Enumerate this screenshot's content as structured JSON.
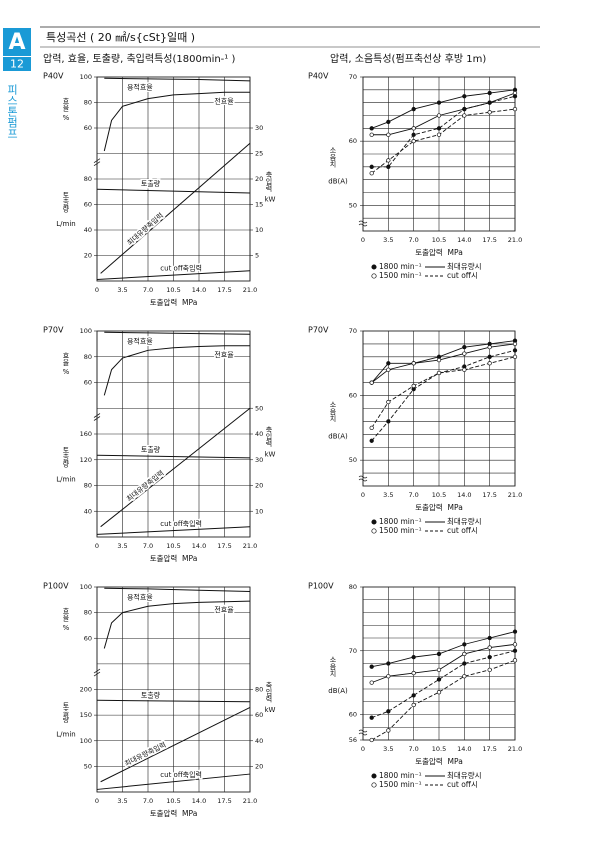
{
  "header": {
    "badge": "A",
    "page": "12",
    "side": "피스톤펌프",
    "title": "특성곡선 ( 20 ㎟/s{cSt}일때 )",
    "left_heading": "압력, 효율, 토출량, 축입력특성(1800min-¹ )",
    "right_heading": "압력, 소음특성(펌프축선상 후방 1m)"
  },
  "chart_data": [
    {
      "type": "performance",
      "title": "P40V",
      "xlabel": "토출압력  MPa",
      "xlim": [
        0,
        21
      ],
      "xticks": [
        0,
        3.5,
        {
          "value": 7,
          "label": "7.0"
        },
        10.5,
        {
          "value": 14,
          "label": "14.0"
        },
        17.5,
        {
          "value": 21,
          "label": "21.0"
        }
      ],
      "ylim": [
        0,
        160
      ],
      "yticks": [
        20,
        40,
        60,
        80
      ],
      "ylabel": "토출량",
      "yunit": "L/min",
      "y2lim": [
        0,
        40
      ],
      "y2ticks": [
        5,
        10,
        15,
        20,
        25,
        30
      ],
      "y2label": "축입력",
      "y2unit": "kW",
      "y3lim": [
        -60,
        100
      ],
      "y3ticks": [
        60,
        80,
        100
      ],
      "y3label": "효율",
      "y3unit": "%",
      "series": [
        {
          "name": "용적효율",
          "axis": "y3",
          "x": [
            1,
            7,
            14,
            21
          ],
          "values": [
            99,
            98.5,
            98,
            97
          ]
        },
        {
          "name": "전효율",
          "axis": "y3",
          "x": [
            1,
            2,
            3.5,
            7,
            10.5,
            14,
            17.5,
            21
          ],
          "values": [
            42,
            66,
            77,
            83,
            86,
            87,
            88,
            88
          ]
        },
        {
          "name": "토출량",
          "axis": "y",
          "x": [
            0,
            21
          ],
          "values": [
            72,
            69
          ]
        },
        {
          "name": "최대유량축입력",
          "axis": "y2",
          "x": [
            0.5,
            21
          ],
          "values": [
            1.5,
            27
          ]
        },
        {
          "name": "cut off축입력",
          "axis": "y2",
          "x": [
            0,
            21
          ],
          "values": [
            0.3,
            2
          ]
        }
      ]
    },
    {
      "type": "noise",
      "title": "P40V",
      "xlabel": "토출압력  MPa",
      "xlim": [
        0,
        21
      ],
      "xticks": [
        0,
        3.5,
        {
          "value": 7,
          "label": "7.0"
        },
        10.5,
        {
          "value": 14,
          "label": "14.0"
        },
        17.5,
        {
          "value": 21,
          "label": "21.0"
        }
      ],
      "ylim": [
        46,
        70
      ],
      "yticks": [
        50,
        60,
        70
      ],
      "ylabel": "소음치",
      "yunit": "dB(A)",
      "x": [
        1.2,
        3.5,
        7,
        10.5,
        14,
        17.5,
        21
      ],
      "legend": {
        "speeds": [
          "1800 min⁻¹",
          "1500 min⁻¹"
        ],
        "conditions": [
          "최대유량시",
          "cut off시"
        ]
      },
      "series": [
        {
          "marker": "filled",
          "dash": false,
          "color": "#111",
          "values": [
            62,
            63,
            65,
            66,
            67,
            67.5,
            68
          ]
        },
        {
          "marker": "open",
          "dash": false,
          "color": "#111",
          "values": [
            61,
            61,
            62,
            64,
            65,
            66,
            67.5
          ]
        },
        {
          "marker": "filled",
          "dash": true,
          "color": "#111",
          "values": [
            56,
            56,
            61,
            62,
            65,
            66,
            67
          ]
        },
        {
          "marker": "open",
          "dash": true,
          "color": "#111",
          "values": [
            55,
            57,
            60,
            61,
            64,
            64.5,
            65
          ]
        }
      ]
    },
    {
      "type": "performance",
      "title": "P70V",
      "xlabel": "토출압력  MPa",
      "xlim": [
        0,
        21
      ],
      "xticks": [
        0,
        3.5,
        {
          "value": 7,
          "label": "7.0"
        },
        10.5,
        {
          "value": 14,
          "label": "14.0"
        },
        17.5,
        {
          "value": 21,
          "label": "21.0"
        }
      ],
      "ylim": [
        0,
        320
      ],
      "yticks": [
        40,
        80,
        120,
        160
      ],
      "ylabel": "토출량",
      "yunit": "L/min",
      "y2lim": [
        0,
        80
      ],
      "y2ticks": [
        10,
        20,
        30,
        40,
        50
      ],
      "y2label": "축입력",
      "y2unit": "kW",
      "y3lim": [
        -60,
        100
      ],
      "y3ticks": [
        60,
        80,
        100
      ],
      "y3label": "효율",
      "y3unit": "%",
      "series": [
        {
          "name": "용적효율",
          "axis": "y3",
          "x": [
            1,
            7,
            14,
            21
          ],
          "values": [
            99,
            98.5,
            98,
            97.5
          ]
        },
        {
          "name": "전효율",
          "axis": "y3",
          "x": [
            1,
            2,
            3.5,
            7,
            10.5,
            14,
            17.5,
            21
          ],
          "values": [
            50,
            70,
            79,
            85,
            87,
            88,
            88.5,
            88.5
          ]
        },
        {
          "name": "토출량",
          "axis": "y",
          "x": [
            0,
            21
          ],
          "values": [
            127,
            123
          ]
        },
        {
          "name": "최대유량축입력",
          "axis": "y2",
          "x": [
            0.5,
            21
          ],
          "values": [
            4,
            50
          ]
        },
        {
          "name": "cut off축입력",
          "axis": "y2",
          "x": [
            0,
            21
          ],
          "values": [
            1,
            4
          ]
        }
      ]
    },
    {
      "type": "noise",
      "title": "P70V",
      "xlabel": "토출압력  MPa",
      "xlim": [
        0,
        21
      ],
      "xticks": [
        0,
        3.5,
        {
          "value": 7,
          "label": "7.0"
        },
        10.5,
        {
          "value": 14,
          "label": "14.0"
        },
        17.5,
        {
          "value": 21,
          "label": "21.0"
        }
      ],
      "ylim": [
        46,
        70
      ],
      "yticks": [
        50,
        60,
        70
      ],
      "ylabel": "소음치",
      "yunit": "dB(A)",
      "x": [
        1.2,
        3.5,
        7,
        10.5,
        14,
        17.5,
        21
      ],
      "legend": {
        "speeds": [
          "1800 min⁻¹",
          "1500 min⁻¹"
        ],
        "conditions": [
          "최대유량시",
          "cut off시"
        ]
      },
      "series": [
        {
          "marker": "filled",
          "dash": false,
          "color": "#111",
          "values": [
            62,
            65,
            65,
            66,
            67.5,
            68,
            68.5
          ]
        },
        {
          "marker": "open",
          "dash": false,
          "color": "#111",
          "values": [
            62,
            64,
            65,
            65.5,
            66.5,
            67.5,
            68
          ]
        },
        {
          "marker": "filled",
          "dash": true,
          "color": "#111",
          "values": [
            53,
            56,
            61,
            63.5,
            64.5,
            66,
            67
          ]
        },
        {
          "marker": "open",
          "dash": true,
          "color": "#111",
          "values": [
            55,
            59,
            61.5,
            63.5,
            64,
            65,
            66
          ]
        }
      ]
    },
    {
      "type": "performance",
      "title": "P100V",
      "xlabel": "토출압력  MPa",
      "xlim": [
        0,
        21
      ],
      "xticks": [
        0,
        3.5,
        {
          "value": 7,
          "label": "7.0"
        },
        10.5,
        {
          "value": 14,
          "label": "14.0"
        },
        17.5,
        {
          "value": 21,
          "label": "21.0"
        }
      ],
      "ylim": [
        0,
        400
      ],
      "yticks": [
        50,
        100,
        150,
        200
      ],
      "ylabel": "토출량",
      "yunit": "L/min",
      "y2lim": [
        0,
        160
      ],
      "y2ticks": [
        20,
        40,
        60,
        80
      ],
      "y2label": "축입력",
      "y2unit": "kW",
      "y3lim": [
        -60,
        100
      ],
      "y3ticks": [
        60,
        80,
        100
      ],
      "y3label": "효율",
      "y3unit": "%",
      "series": [
        {
          "name": "용적효율",
          "axis": "y3",
          "x": [
            1,
            7,
            14,
            21
          ],
          "values": [
            99,
            98.5,
            97.5,
            96.5
          ]
        },
        {
          "name": "전효율",
          "axis": "y3",
          "x": [
            1,
            2,
            3.5,
            7,
            10.5,
            14,
            17.5,
            21
          ],
          "values": [
            52,
            72,
            80,
            85,
            87,
            88,
            88.5,
            89
          ]
        },
        {
          "name": "토출량",
          "axis": "y",
          "x": [
            0,
            21
          ],
          "values": [
            179,
            176
          ]
        },
        {
          "name": "최대유량축입력",
          "axis": "y2",
          "x": [
            0.5,
            21
          ],
          "values": [
            8,
            66
          ]
        },
        {
          "name": "cut off축입력",
          "axis": "y2",
          "x": [
            0,
            21
          ],
          "values": [
            2,
            14
          ]
        }
      ]
    },
    {
      "type": "noise",
      "title": "P100V",
      "xlabel": "토출압력  MPa",
      "xlim": [
        0,
        21
      ],
      "xticks": [
        0,
        3.5,
        {
          "value": 7,
          "label": "7.0"
        },
        10.5,
        {
          "value": 14,
          "label": "14.0"
        },
        17.5,
        {
          "value": 21,
          "label": "21.0"
        }
      ],
      "ylim": [
        56,
        80
      ],
      "yticks": [
        56,
        60,
        70,
        80
      ],
      "ylabel": "소음치",
      "yunit": "dB(A)",
      "x": [
        1.2,
        3.5,
        7,
        10.5,
        14,
        17.5,
        21
      ],
      "legend": {
        "speeds": [
          "1800 min⁻¹",
          "1500 min⁻¹"
        ],
        "conditions": [
          "최대유량시",
          "cut off시"
        ]
      },
      "series": [
        {
          "marker": "filled",
          "dash": false,
          "color": "#111",
          "values": [
            67.5,
            68,
            69,
            69.5,
            71,
            72,
            73
          ]
        },
        {
          "marker": "open",
          "dash": false,
          "color": "#111",
          "values": [
            65,
            66,
            66.5,
            67,
            69.5,
            70.5,
            71
          ]
        },
        {
          "marker": "filled",
          "dash": true,
          "color": "#111",
          "values": [
            59.5,
            60.5,
            63,
            65.5,
            68,
            69,
            70
          ]
        },
        {
          "marker": "open",
          "dash": true,
          "color": "#111",
          "values": [
            56,
            57.5,
            61.5,
            63.5,
            66,
            67,
            68.5
          ]
        }
      ]
    }
  ]
}
